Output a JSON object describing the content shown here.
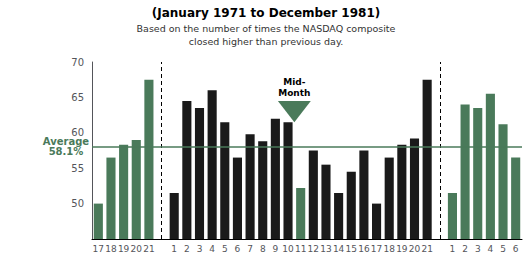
{
  "chart_data": {
    "type": "bar",
    "title": "(January 1971 to December 1981)",
    "subtitle": "Based on the number of times the NASDAQ composite\nclosed higher than previous day.",
    "categories": [
      "17",
      "18",
      "19",
      "20",
      "21",
      null,
      "1",
      "2",
      "3",
      "4",
      "5",
      "6",
      "7",
      "8",
      "9",
      "10",
      "11",
      "12",
      "13",
      "14",
      "15",
      "16",
      "17",
      "18",
      "19",
      "20",
      "21",
      null,
      "1",
      "2",
      "3",
      "4",
      "5",
      "6"
    ],
    "values": [
      50.0,
      56.5,
      58.3,
      59.0,
      67.5,
      null,
      51.5,
      64.5,
      63.5,
      66.0,
      61.5,
      56.5,
      59.8,
      58.8,
      62.0,
      61.5,
      52.2,
      57.5,
      55.5,
      51.5,
      54.5,
      57.5,
      50.0,
      56.5,
      58.3,
      59.2,
      67.5,
      null,
      51.5,
      64.0,
      63.5,
      65.5,
      61.2,
      56.5
    ],
    "colors": [
      "#4a7a5a",
      "#4a7a5a",
      "#4a7a5a",
      "#4a7a5a",
      "#4a7a5a",
      null,
      "#1a1a1a",
      "#1a1a1a",
      "#1a1a1a",
      "#1a1a1a",
      "#1a1a1a",
      "#1a1a1a",
      "#1a1a1a",
      "#1a1a1a",
      "#1a1a1a",
      "#1a1a1a",
      "#4a7a5a",
      "#1a1a1a",
      "#1a1a1a",
      "#1a1a1a",
      "#1a1a1a",
      "#1a1a1a",
      "#1a1a1a",
      "#1a1a1a",
      "#1a1a1a",
      "#1a1a1a",
      "#1a1a1a",
      null,
      "#4a7a5a",
      "#4a7a5a",
      "#4a7a5a",
      "#4a7a5a",
      "#4a7a5a",
      "#4a7a5a"
    ],
    "ylim": [
      45,
      70
    ],
    "yticks": [
      50,
      55,
      60,
      65,
      70
    ],
    "grid": false,
    "annotations": [
      {
        "type": "hline",
        "value": 58.1,
        "label": "Average\n58.1%",
        "color": "#4a7a5a"
      },
      {
        "type": "text",
        "label": "Mid-\nMonth",
        "color": "#4a7a5a"
      }
    ]
  }
}
